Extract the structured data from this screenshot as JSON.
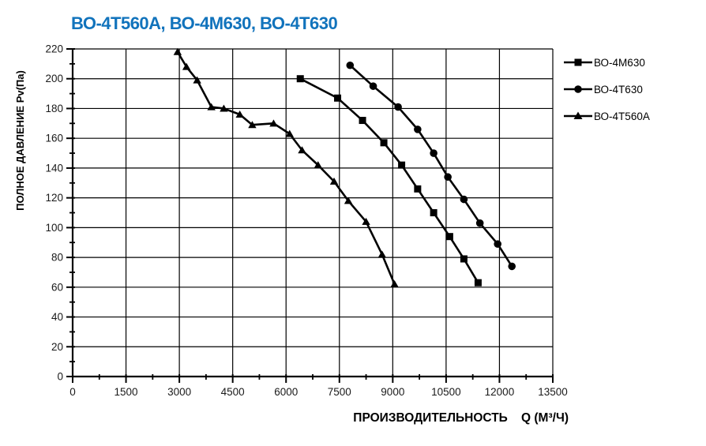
{
  "title": "ВО-4Т560А, ВО-4М630, ВО-4Т630",
  "colors": {
    "title_accent": "#1173BC",
    "series": "#000000",
    "grid": "#000000",
    "tick_text": "#1a1a1a"
  },
  "chart_data": {
    "type": "line",
    "title": "ВО-4Т560А, ВО-4М630, ВО-4Т630",
    "xlabel": "ПРОИЗВОДИТЕЛЬНОСТЬ    Q (М³/Ч)",
    "ylabel": "ПОЛНОЕ ДАВЛЕНИЕ  Pv(Па)",
    "xlim": [
      0,
      13500
    ],
    "ylim": [
      0,
      220
    ],
    "x_ticks": [
      0,
      1500,
      3000,
      4500,
      6000,
      7500,
      9000,
      10500,
      12000,
      13500
    ],
    "y_ticks": [
      0,
      20,
      40,
      60,
      80,
      100,
      120,
      140,
      160,
      180,
      200,
      220
    ],
    "x_minor_step": 750,
    "y_minor_step": 10,
    "grid": true,
    "legend_position": "right",
    "series": [
      {
        "name": "ВО-4М630",
        "marker": "square",
        "color": "#000000",
        "points": [
          [
            6400,
            200
          ],
          [
            7450,
            187
          ],
          [
            8150,
            172
          ],
          [
            8750,
            157
          ],
          [
            9250,
            142
          ],
          [
            9700,
            126
          ],
          [
            10150,
            110
          ],
          [
            10600,
            94
          ],
          [
            11000,
            79
          ],
          [
            11400,
            63
          ]
        ]
      },
      {
        "name": "ВО-4Т630",
        "marker": "circle",
        "color": "#000000",
        "points": [
          [
            7800,
            209
          ],
          [
            8450,
            195
          ],
          [
            9150,
            181
          ],
          [
            9700,
            166
          ],
          [
            10150,
            150
          ],
          [
            10550,
            134
          ],
          [
            11000,
            119
          ],
          [
            11450,
            103
          ],
          [
            11950,
            89
          ],
          [
            12350,
            74
          ]
        ]
      },
      {
        "name": "ВО-4Т560А",
        "marker": "triangle",
        "color": "#000000",
        "points": [
          [
            2950,
            218
          ],
          [
            3200,
            208
          ],
          [
            3500,
            199
          ],
          [
            3900,
            181
          ],
          [
            4250,
            180
          ],
          [
            4700,
            176
          ],
          [
            5050,
            169
          ],
          [
            5650,
            170
          ],
          [
            6100,
            163
          ],
          [
            6450,
            152
          ],
          [
            6900,
            142
          ],
          [
            7350,
            131
          ],
          [
            7750,
            118
          ],
          [
            8250,
            104
          ],
          [
            8700,
            82
          ],
          [
            9050,
            62
          ]
        ]
      }
    ]
  }
}
